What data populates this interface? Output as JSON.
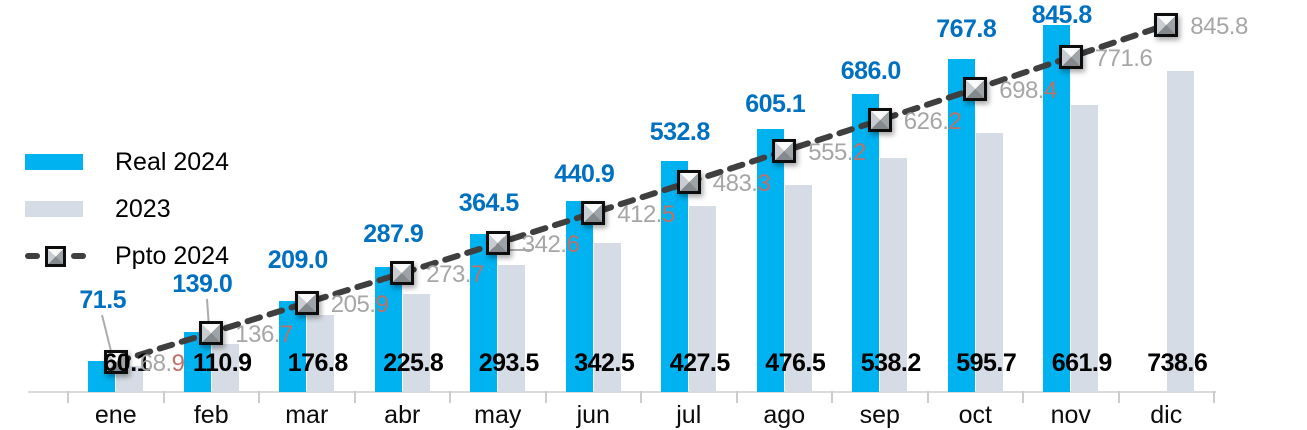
{
  "chart_data": {
    "type": "bar",
    "title": "",
    "xlabel": "",
    "ylabel": "",
    "categories": [
      "ene",
      "feb",
      "mar",
      "abr",
      "may",
      "jun",
      "jul",
      "ago",
      "sep",
      "oct",
      "nov",
      "dic"
    ],
    "series": [
      {
        "name": "Real 2024",
        "type": "bar",
        "color": "#00B2F0",
        "label_color": "#0070C0",
        "values": [
          71.5,
          139.0,
          209.0,
          287.9,
          364.5,
          440.9,
          532.8,
          605.1,
          686.0,
          767.8,
          845.8,
          null
        ]
      },
      {
        "name": "2023",
        "type": "bar",
        "color": "#D6DCE5",
        "label_color": "#000000",
        "values": [
          60.1,
          110.9,
          176.8,
          225.8,
          293.5,
          342.5,
          427.5,
          476.5,
          538.2,
          595.7,
          661.9,
          738.6
        ]
      },
      {
        "name": "Ppto 2024",
        "type": "line",
        "color": "#3F3F3F",
        "line_style": "dashed",
        "marker": "beveled-square",
        "label_color": "#A6A6A6",
        "label_decimal_color": "#BE7166",
        "values": [
          68.9,
          136.7,
          205.9,
          273.7,
          342.6,
          412.5,
          483.3,
          555.2,
          626.2,
          698.4,
          771.6,
          845.8
        ]
      }
    ],
    "ylim": [
      0,
      880
    ],
    "grid": false,
    "y_axis_visible": false,
    "legend_position": "left",
    "value_format": "one-decimal"
  }
}
